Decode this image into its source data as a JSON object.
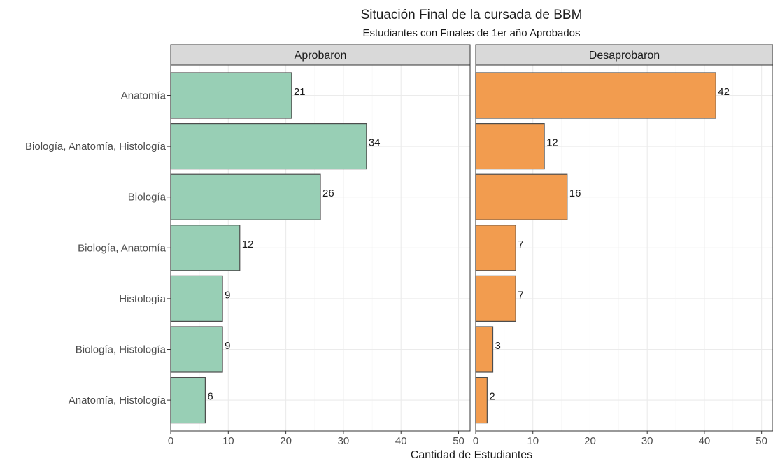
{
  "chart_data": {
    "type": "bar",
    "orientation": "horizontal",
    "title": "Situación Final de la cursada de BBM",
    "subtitle": "Estudiantes con Finales de 1er año Aprobados",
    "xlabel": "Cantidad de Estudiantes",
    "ylabel": "",
    "xlim": [
      0,
      52
    ],
    "x_ticks": [
      "0",
      "10",
      "20",
      "30",
      "40",
      "50"
    ],
    "grid": true,
    "legend": "none",
    "categories": [
      "Anatomía",
      "Biología, Anatomía, Histología",
      "Biología",
      "Biología, Anatomía",
      "Histología",
      "Biología, Histología",
      "Anatomía, Histología"
    ],
    "panels": [
      {
        "label": "Aprobaron",
        "color": "#98cfb5",
        "values": [
          21,
          34,
          26,
          12,
          9,
          9,
          6
        ],
        "labels": [
          "21",
          "34",
          "26",
          "12",
          "9",
          "9",
          "6"
        ]
      },
      {
        "label": "Desaprobaron",
        "color": "#f29c4f",
        "values": [
          42,
          12,
          16,
          7,
          7,
          3,
          2
        ],
        "labels": [
          "42",
          "12",
          "16",
          "7",
          "7",
          "3",
          "2"
        ]
      }
    ],
    "colors": {
      "strip_bg": "#d9d9d9",
      "panel_border": "#333333",
      "bar_border": "#4d4d4d",
      "grid_major": "#ebebeb",
      "grid_minor": "#f5f5f5"
    }
  }
}
